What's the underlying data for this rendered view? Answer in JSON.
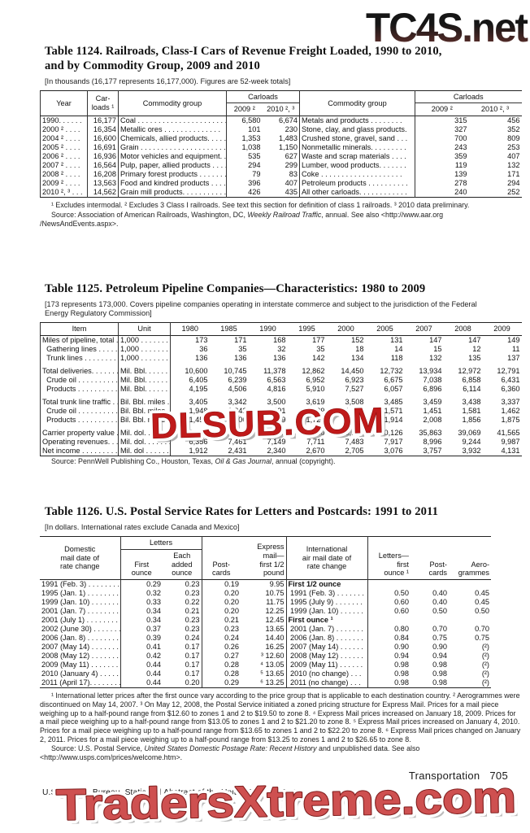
{
  "watermarks": {
    "top": "TC4S.net",
    "middle": "DLSUB.COM",
    "bottom": "TradersXtreme.com"
  },
  "footer": {
    "section_label": "Transportation",
    "page_number": "705",
    "credit_line": "U.S. Census Bureau, Statistical Abstract of the United States: 2012"
  },
  "colors": {
    "watermark_red": "#c01a1a",
    "watermark_coral": "#ce5050",
    "rule_black": "#222222"
  },
  "table1124": {
    "title": "Table 1124. Railroads, Class-I Cars of Revenue Freight Loaded, 1990 to 2010,\nand by Commodity Group, 2009 and 2010",
    "bracket_note": "[In thousands (16,177 represents 16,177,000). Figures are 52-week totals]",
    "header": {
      "year": "Year",
      "carloads": "Car-\nloads ¹",
      "commodity": "Commodity group",
      "carloads_span": "Carloads",
      "y2009": "2009 ²",
      "y2010": "2010 ², ³"
    },
    "rows": [
      {
        "cells": [
          "1990. . . . . .",
          "16,177",
          "Coal . . . . . . . . . . . . . . . . . . . . . . .",
          "6,580",
          "6,674",
          "Metals and products . . . . . . . .",
          "315",
          "456"
        ]
      },
      {
        "cells": [
          "2000 ² . . . .",
          "16,354",
          "Metallic ores  . . . . . . . . . . . . . .",
          "101",
          "230",
          "Stone, clay, and glass products.",
          "327",
          "352"
        ]
      },
      {
        "cells": [
          "2004 ² . . . .",
          "16,600",
          "Chemicals, allied products. . . . .",
          "1,353",
          "1,483",
          "Crushed stone, gravel, sand . . .",
          "700",
          "809"
        ]
      },
      {
        "cells": [
          "2005 ² . . . .",
          "16,691",
          "Grain . . . . . . . . . . . . . . . . . . . . .",
          "1,038",
          "1,150",
          "Nonmetallic minerals. . . . . . . . .",
          "243",
          "253"
        ]
      },
      {
        "cells": [
          "2006 ² . . . .",
          "16,936",
          "Motor vehicles and equipment. .",
          "535",
          "627",
          "Waste and scrap materials  . . . .",
          "359",
          "407"
        ]
      },
      {
        "cells": [
          "2007 ² . . . .",
          "16,564",
          "Pulp, paper, allied products . . . .",
          "294",
          "299",
          "Lumber, wood products. . . . . . .",
          "119",
          "132"
        ]
      },
      {
        "cells": [
          "2008 ² . . . .",
          "16,208",
          "Primary forest products . . . . . . .",
          "79",
          "83",
          "Coke  . . . . . . . . . . . . . . . . . . . .",
          "139",
          "171"
        ]
      },
      {
        "cells": [
          "2009 ² . . . .",
          "13,563",
          "Food and kindred products . . . .",
          "396",
          "407",
          "Petroleum products . . . . . . . . . .",
          "278",
          "294"
        ]
      },
      {
        "cells": [
          "2010 ², ³ . . .",
          "14,562",
          "Grain mill products. . . . . . . . . . .",
          "426",
          "435",
          "All other carloads. . . . . . . . . . . .",
          "240",
          "252"
        ]
      }
    ],
    "footnotes": "¹ Excludes intermodal. ² Excludes 3 Class I railroads. See text this section for definition of class 1 railroads. ³ 2010 data preliminary.",
    "source": {
      "prefix": "Source: Association of American Railroads, Washington, DC, ",
      "italic": "Weekly Railroad Traffic",
      "suffix": ", annual. See also <http://www.aar.org /NewsAndEvents.aspx>."
    }
  },
  "table1125": {
    "title": "Table 1125. Petroleum Pipeline Companies—Characteristics: 1980 to 2009",
    "bracket_note": "[173 represents 173,000. Covers pipeline companies operating in interstate commerce and subject to the jurisdiction of the Federal Energy Regulatory Commission]",
    "header": {
      "item": "Item",
      "unit": "Unit",
      "years": [
        "1980",
        "1985",
        "1990",
        "1995",
        "2000",
        "2005",
        "2007",
        "2008",
        "2009"
      ]
    },
    "rows": [
      {
        "cells": [
          "Miles of pipeline, total . . .",
          "1,000 . . . . . . . . .",
          "173",
          "171",
          "168",
          "177",
          "152",
          "131",
          "147",
          "147",
          "149"
        ]
      },
      {
        "cells": [
          "  Gathering lines  . . . . . . .",
          "1,000 . . . . . . . . .",
          "36",
          "35",
          "32",
          "35",
          "18",
          "14",
          "15",
          "12",
          "11"
        ]
      },
      {
        "cells": [
          "  Trunk lines . . . . . . . . . . .",
          "1,000 . . . . . . . . .",
          "136",
          "136",
          "136",
          "142",
          "134",
          "118",
          "132",
          "135",
          "137"
        ]
      },
      {
        "cls": "gap",
        "cells": [
          "Total deliveries. . . . . . . . . .",
          "Mil. Bbl. . . . . . . .",
          "10,600",
          "10,745",
          "11,378",
          "12,862",
          "14,450",
          "12,732",
          "13,934",
          "12,972",
          "12,791"
        ]
      },
      {
        "cells": [
          "  Crude oil  . . . . . . . . . . . .",
          "Mil. Bbl. . . . . . . .",
          "6,405",
          "6,239",
          "6,563",
          "6,952",
          "6,923",
          "6,675",
          "7,038",
          "6,858",
          "6,431"
        ]
      },
      {
        "cells": [
          "  Products  . . . . . . . . . . . .",
          "Mil. Bbl. . . . . . . .",
          "4,195",
          "4,506",
          "4,816",
          "5,910",
          "7,527",
          "6,057",
          "6,896",
          "6,114",
          "6,360"
        ]
      },
      {
        "cls": "gap",
        "cells": [
          "Total trunk line traffic . . . .",
          "Bil. Bbl. miles . . .",
          "3,405",
          "3,342",
          "3,500",
          "3,619",
          "3,508",
          "3,485",
          "3,459",
          "3,438",
          "3,337"
        ]
      },
      {
        "cells": [
          "  Crude oil  . . . . . . . . . . . .",
          "Bil. Bbl. miles . . .",
          "1,948",
          "1,842",
          "1,891",
          "1,899",
          "1,602",
          "1,571",
          "1,451",
          "1,581",
          "1,462"
        ]
      },
      {
        "cells": [
          "  Products  . . . . . . . . . . . .",
          "Bil. Bbl. miles . . .",
          "1,457",
          "1,500",
          "1,609",
          "1,720",
          "1,906",
          "1,914",
          "2,008",
          "1,856",
          "1,875"
        ]
      },
      {
        "cls": "gap",
        "cells": [
          "Carrier property value . . .",
          "Mil. dol. . . . . . . . .",
          "12,399",
          "16,894",
          "20,189",
          "24,530",
          "26,524",
          "30,126",
          "35,863",
          "39,069",
          "41,565"
        ]
      },
      {
        "cells": [
          "Operating revenues. . . . . .",
          "Mil. dol. . . . . . . . .",
          "6,356",
          "7,461",
          "7,149",
          "7,711",
          "7,483",
          "7,917",
          "8,996",
          "9,244",
          "9,987"
        ]
      },
      {
        "cells": [
          "Net income  . . . . . . . . . . .",
          "Mil. dol . . . . . . . .",
          "1,912",
          "2,431",
          "2,340",
          "2,670",
          "2,705",
          "3,076",
          "3,757",
          "3,932",
          "4,131"
        ]
      }
    ],
    "source": {
      "prefix": "Source: PennWell Publishing Co., Houston, Texas, ",
      "italic": "Oil & Gas Journal",
      "suffix": ", annual (copyright)."
    }
  },
  "table1126": {
    "title": "Table 1126. U.S. Postal Service Rates for Letters and Postcards: 1991 to 2011",
    "bracket_note": "[In dollars. International rates exclude Canada and Mexico]",
    "header": {
      "domestic": "Domestic\nmail date of\nrate change",
      "letters_span": "Letters",
      "first_ounce": "First\nounce",
      "each_added": "Each\nadded\nounce",
      "postcards": "Post-\ncards",
      "express": "Express\nmail—\nfirst 1/2\npound",
      "international": "International\nair mail date of\nrate change",
      "letters_first": "Letters—\nfirst\nounce ¹",
      "postcards2": "Post-\ncards",
      "aerogrammes": "Aero-\ngrammes"
    },
    "rows": [
      {
        "cls": "bint",
        "cells": [
          "1991 (Feb. 3) . . . . . . . . . . .",
          "0.29",
          "0.23",
          "0.19",
          "9.95",
          "First 1/2 ounce",
          "",
          "",
          ""
        ]
      },
      {
        "cells": [
          "1995 (Jan. 1) . . . . . . . . . . .",
          "0.32",
          "0.23",
          "0.20",
          "10.75",
          " 1991 (Feb. 3) . . . . . . .",
          "0.50",
          "0.40",
          "0.45"
        ]
      },
      {
        "cells": [
          "1999 (Jan. 10) . . . . . . . . . .",
          "0.33",
          "0.22",
          "0.20",
          "11.75",
          " 1995 (July 9) . . . . . . .",
          "0.60",
          "0.40",
          "0.45"
        ]
      },
      {
        "cells": [
          "2001 (Jan. 7) . . . . . . . . . . .",
          "0.34",
          "0.21",
          "0.20",
          "12.25",
          " 1999 (Jan. 10) . . . . . .",
          "0.60",
          "0.50",
          "0.50"
        ]
      },
      {
        "cls": "bint",
        "cells": [
          "2001 (July 1) . . . . . . . . . . .",
          "0.34",
          "0.23",
          "0.21",
          "12.45",
          "First ounce ¹",
          "",
          "",
          ""
        ]
      },
      {
        "cells": [
          "2002 (June 30)  . . . . . . . . .",
          "0.37",
          "0.23",
          "0.23",
          "13.65",
          " 2001 (Jan. 7) . . . . . . .",
          "0.80",
          "0.70",
          "0.70"
        ]
      },
      {
        "cells": [
          "2006 (Jan. 8) . . . . . . . . . . .",
          "0.39",
          "0.24",
          "0.24",
          "14.40",
          " 2006 (Jan. 8) . . . . . . .",
          "0.84",
          "0.75",
          "0.75"
        ]
      },
      {
        "cells": [
          "2007 (May 14) . . . . . . . . . .",
          "0.41",
          "0.17",
          "0.26",
          "16.25",
          " 2007 (May 14) . . . . . .",
          "0.90",
          "0.90",
          "(²)"
        ]
      },
      {
        "cells": [
          "2008 (May 12) . . . . . . . . . .",
          "0.42",
          "0.17",
          "0.27",
          "³ 12.60",
          " 2008 (May 12) . . . . . .",
          "0.94",
          "0.94",
          "(²)"
        ]
      },
      {
        "cells": [
          "2009 (May 11) . . . . . . . . . .",
          "0.44",
          "0.17",
          "0.28",
          "⁴ 13.05",
          " 2009 (May 11) . . . . . .",
          "0.98",
          "0.98",
          "(²)"
        ]
      },
      {
        "cells": [
          "2010 (January 4) . . . . . . . .",
          "0.44",
          "0.17",
          "0.28",
          "⁵ 13.65",
          " 2010 (no change)  . . .",
          "0.98",
          "0.98",
          "(²)"
        ]
      },
      {
        "cells": [
          "2011 (April 17). . . . . . . . . .",
          "0.44",
          "0.20",
          "0.29",
          "⁶ 13.25",
          " 2011 (no change)  . . .",
          "0.98",
          "0.98",
          "(²)"
        ]
      }
    ],
    "footnotes": "¹ International letter prices after the first ounce vary according to the price group that is applicable to each destination country. ² Aerogrammes were discontinued on May 14, 2007. ³ On May 12, 2008, the Postal Service initiated a zoned pricing structure for Express Mail. Prices for a mail piece weighing up to a half-pound range from $12.60 to zones 1 and 2 to $19.50 to zone 8. ⁴ Express Mail prices increased on January 18, 2009. Prices for a mail piece weighing up to a half-pound range from $13.05 to zones 1 and 2 to $21.20 to zone 8. ⁵ Express Mail prices increased on January 4, 2010. Prices for a mail piece weighing up to a half-pound range from $13.65 to zones 1 and 2 to $22.20 to zone 8. ⁶ Express Mail prices changed on January 2, 2011. Prices for a mail piece weighing up to a half-pound range from $13.25 to zones 1 and 2 to $26.65 to zone 8.",
    "source": {
      "prefix": "Source: U.S. Postal Service, ",
      "italic": "United States Domestic Postage Rate: Recent History",
      "suffix": " and unpublished data. See also <http://www.usps.com/prices/welcome.htm>."
    }
  }
}
